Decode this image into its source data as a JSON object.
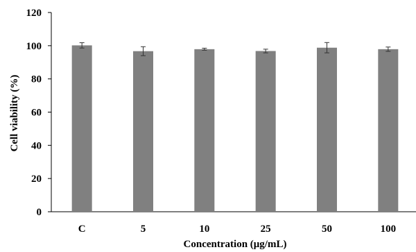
{
  "chart_data": {
    "type": "bar",
    "title": "",
    "xlabel": "Concentration (μg/mL)",
    "ylabel": "Cell viability (%)",
    "categories": [
      "C",
      "5",
      "10",
      "25",
      "50",
      "100"
    ],
    "values": [
      100.2,
      96.7,
      97.9,
      96.8,
      98.8,
      97.9
    ],
    "errors": [
      1.6,
      2.7,
      0.6,
      1.1,
      3.1,
      1.3
    ],
    "ylim": [
      0,
      120
    ],
    "yticks": [
      0,
      20,
      40,
      60,
      80,
      100,
      120
    ],
    "bar_color": "#808080",
    "grid": false,
    "legend": "none"
  }
}
